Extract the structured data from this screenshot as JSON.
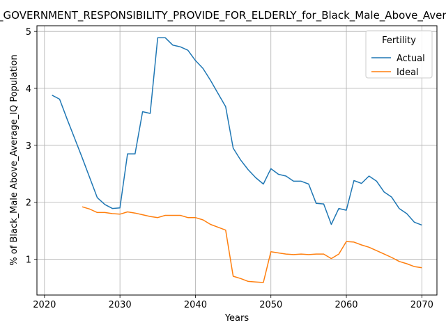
{
  "chart_data": {
    "type": "line",
    "title": "TRUST_GOVERNMENT_RESPONSIBILITY_PROVIDE_FOR_ELDERLY_for_Black_Male_Above_Average_IQ",
    "xlabel": "Years",
    "ylabel": "% of Black_Male Above_Average_IQ Population",
    "xlim": [
      2019,
      2072
    ],
    "ylim": [
      0.37,
      5.1
    ],
    "xticks": [
      2020,
      2030,
      2040,
      2050,
      2060,
      2070
    ],
    "yticks": [
      1,
      2,
      3,
      4,
      5
    ],
    "grid": true,
    "legend": {
      "title": "Fertility",
      "placement": "top-right"
    },
    "series": [
      {
        "name": "Actual",
        "color": "#1f77b4",
        "x": [
          2021,
          2022,
          2023,
          2024,
          2025,
          2026,
          2027,
          2028,
          2029,
          2030,
          2031,
          2032,
          2033,
          2034,
          2035,
          2036,
          2037,
          2038,
          2039,
          2040,
          2041,
          2042,
          2043,
          2044,
          2045,
          2046,
          2047,
          2048,
          2049,
          2050,
          2051,
          2052,
          2053,
          2054,
          2055,
          2056,
          2057,
          2058,
          2059,
          2060,
          2061,
          2062,
          2063,
          2064,
          2065,
          2066,
          2067,
          2068,
          2069,
          2070
        ],
        "y": [
          3.88,
          3.81,
          3.46,
          3.12,
          2.78,
          2.43,
          2.08,
          1.96,
          1.89,
          1.9,
          2.85,
          2.85,
          3.59,
          3.56,
          4.89,
          4.89,
          4.76,
          4.73,
          4.67,
          4.49,
          4.35,
          4.14,
          3.91,
          3.68,
          2.95,
          2.74,
          2.57,
          2.43,
          2.32,
          2.59,
          2.49,
          2.46,
          2.37,
          2.37,
          2.32,
          1.98,
          1.97,
          1.61,
          1.89,
          1.86,
          2.38,
          2.33,
          2.46,
          2.37,
          2.18,
          2.09,
          1.89,
          1.8,
          1.65,
          1.6
        ]
      },
      {
        "name": "Ideal",
        "color": "#ff7f0e",
        "x": [
          2025,
          2026,
          2027,
          2028,
          2029,
          2030,
          2031,
          2032,
          2033,
          2034,
          2035,
          2036,
          2037,
          2038,
          2039,
          2040,
          2041,
          2042,
          2043,
          2044,
          2045,
          2046,
          2047,
          2048,
          2049,
          2050,
          2051,
          2052,
          2053,
          2054,
          2055,
          2056,
          2057,
          2058,
          2059,
          2060,
          2061,
          2062,
          2063,
          2064,
          2065,
          2066,
          2067,
          2068,
          2069,
          2070
        ],
        "y": [
          1.92,
          1.88,
          1.82,
          1.82,
          1.8,
          1.79,
          1.83,
          1.81,
          1.78,
          1.75,
          1.73,
          1.77,
          1.77,
          1.77,
          1.73,
          1.73,
          1.69,
          1.61,
          1.56,
          1.51,
          0.7,
          0.66,
          0.61,
          0.6,
          0.59,
          1.13,
          1.11,
          1.09,
          1.08,
          1.09,
          1.08,
          1.09,
          1.09,
          1.01,
          1.09,
          1.31,
          1.3,
          1.25,
          1.21,
          1.15,
          1.09,
          1.03,
          0.96,
          0.92,
          0.87,
          0.85
        ]
      }
    ]
  }
}
